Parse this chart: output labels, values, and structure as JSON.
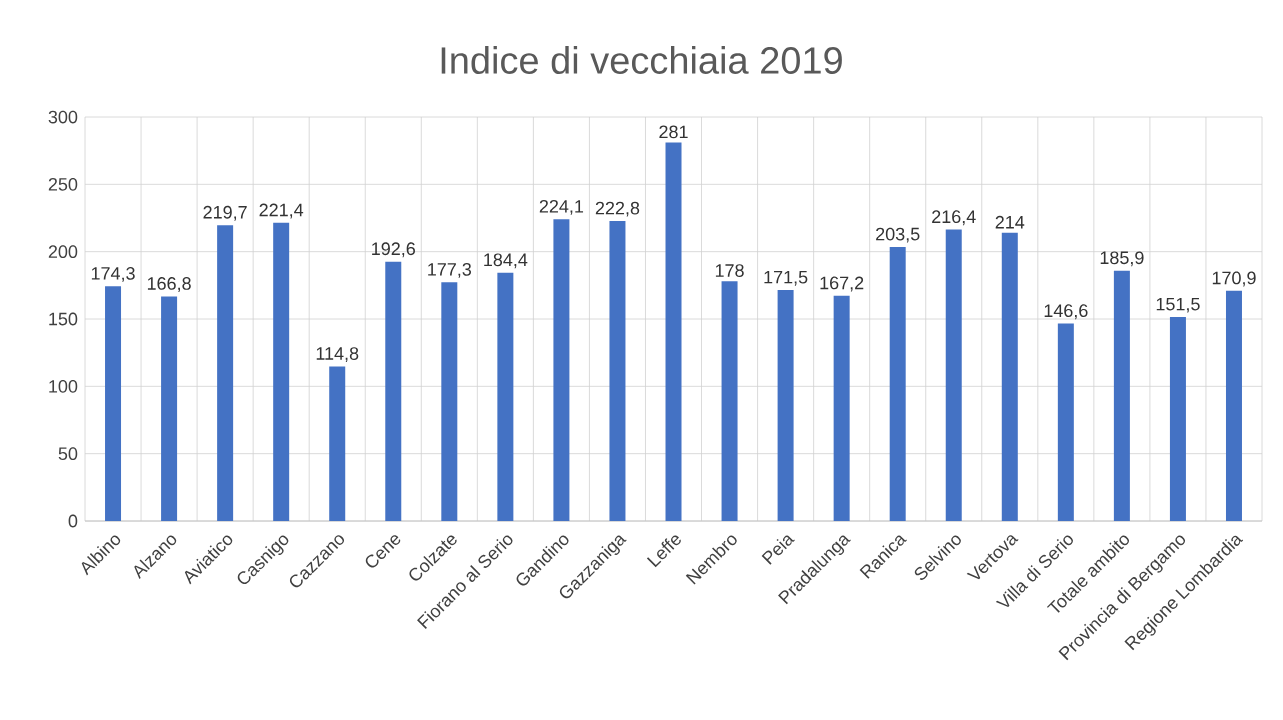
{
  "chart_data": {
    "type": "bar",
    "title": "Indice di vecchiaia 2019",
    "categories": [
      "Albino",
      "Alzano",
      "Aviatico",
      "Casnigo",
      "Cazzano",
      "Cene",
      "Colzate",
      "Fiorano al Serio",
      "Gandino",
      "Gazzaniga",
      "Leffe",
      "Nembro",
      "Peia",
      "Pradalunga",
      "Ranica",
      "Selvino",
      "Vertova",
      "Villa di Serio",
      "Totale ambito",
      "Provincia di Bergamo",
      "Regione Lombardia"
    ],
    "values": [
      174.3,
      166.8,
      219.7,
      221.4,
      114.8,
      192.6,
      177.3,
      184.4,
      224.1,
      222.8,
      281,
      178,
      171.5,
      167.2,
      203.5,
      216.4,
      214,
      146.6,
      185.9,
      151.5,
      170.9
    ],
    "value_labels": [
      "174,3",
      "166,8",
      "219,7",
      "221,4",
      "114,8",
      "192,6",
      "177,3",
      "184,4",
      "224,1",
      "222,8",
      "281",
      "178",
      "171,5",
      "167,2",
      "203,5",
      "216,4",
      "214",
      "146,6",
      "185,9",
      "151,5",
      "170,9"
    ],
    "color": "#4472c4",
    "ylim": [
      0,
      300
    ],
    "yticks": [
      0,
      50,
      100,
      150,
      200,
      250,
      300
    ],
    "grid": true
  }
}
